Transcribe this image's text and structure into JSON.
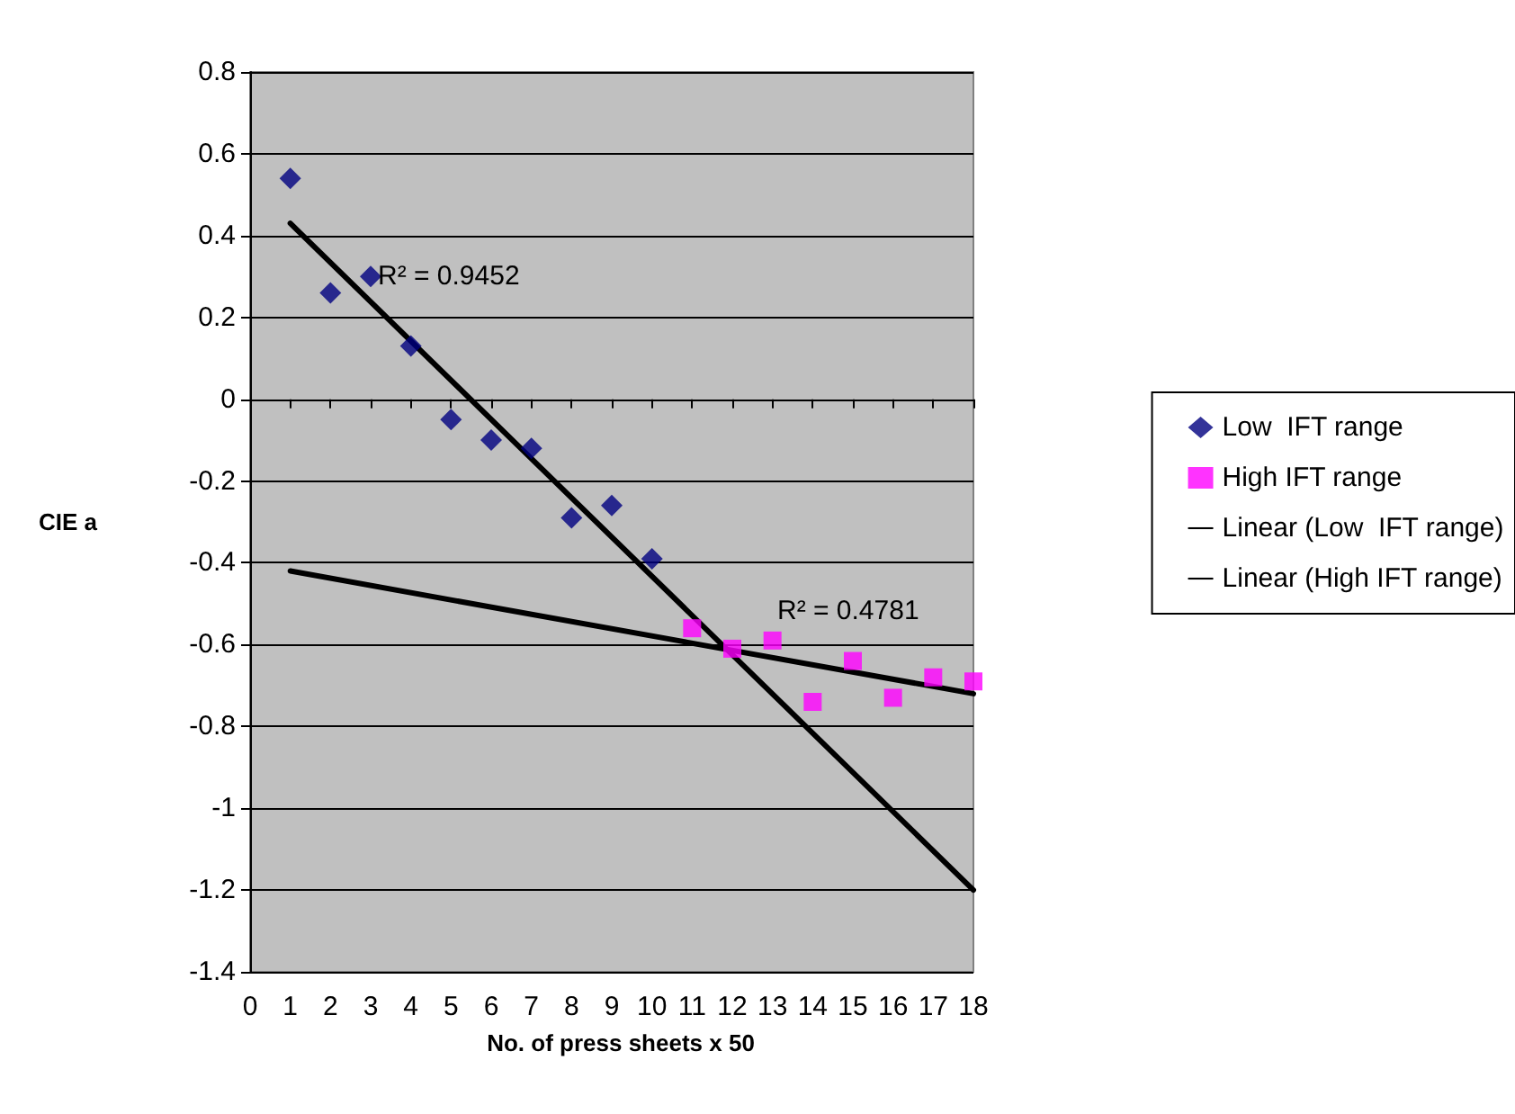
{
  "chart_data": {
    "type": "scatter",
    "xlabel": "No. of press sheets x 50",
    "ylabel": "CIE a",
    "series": [
      {
        "name": "Low  IFT range",
        "color": "#000080",
        "marker": "diamond",
        "x": [
          1,
          2,
          3,
          4,
          5,
          6,
          7,
          8,
          9,
          10
        ],
        "values": [
          0.54,
          0.26,
          0.3,
          0.13,
          -0.05,
          -0.1,
          -0.12,
          -0.29,
          -0.26,
          -0.39
        ]
      },
      {
        "name": "High IFT range",
        "color": "#ff00ff",
        "marker": "square",
        "x": [
          11,
          12,
          13,
          14,
          15,
          16,
          17,
          18
        ],
        "values": [
          -0.56,
          -0.61,
          -0.59,
          -0.74,
          -0.64,
          -0.73,
          -0.68,
          -0.69
        ]
      },
      {
        "name": "Linear (Low  IFT range)",
        "type": "line",
        "color": "#000000",
        "marker": "none",
        "x": [
          1,
          18
        ],
        "values": [
          0.43,
          -1.2
        ]
      },
      {
        "name": "Linear (High IFT range)",
        "type": "line",
        "color": "#000000",
        "marker": "none",
        "x": [
          1,
          18
        ],
        "values": [
          -0.42,
          -0.72
        ]
      }
    ],
    "annotations": [
      "R² = 0.9452",
      "R² = 0.4781"
    ],
    "xlim": [
      0,
      18
    ],
    "xticks": [
      0,
      1,
      2,
      3,
      4,
      5,
      6,
      7,
      8,
      9,
      10,
      11,
      12,
      13,
      14,
      15,
      16,
      17,
      18
    ],
    "ylim": [
      -1.4,
      0.8
    ],
    "yticks": [
      -1.4,
      -1.2,
      -1,
      -0.8,
      -0.6,
      -0.4,
      -0.2,
      0,
      0.2,
      0.4,
      0.6,
      0.8
    ],
    "grid": "y",
    "legend": "right",
    "line_style": "solid"
  }
}
